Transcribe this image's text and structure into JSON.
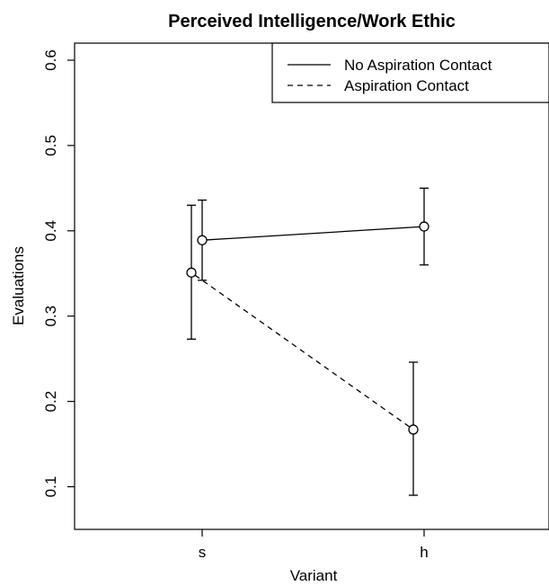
{
  "chart_data": {
    "type": "line",
    "title": "Perceived Intelligence/Work Ethic",
    "xlabel": "Variant",
    "ylabel": "Evaluations",
    "categories": [
      "s",
      "h"
    ],
    "ylim": [
      0.05,
      0.62
    ],
    "yticks": [
      "0.1",
      "0.2",
      "0.3",
      "0.4",
      "0.5",
      "0.6"
    ],
    "grid": false,
    "legend_position": "top-right",
    "series": [
      {
        "name": "No Aspiration Contact",
        "line_style": "solid",
        "values": [
          0.389,
          0.405
        ],
        "lower": [
          0.342,
          0.36
        ],
        "upper": [
          0.436,
          0.45
        ]
      },
      {
        "name": "Aspiration Contact",
        "line_style": "dashed",
        "values": [
          0.351,
          0.167
        ],
        "lower": [
          0.273,
          0.09
        ],
        "upper": [
          0.43,
          0.246
        ]
      }
    ]
  }
}
